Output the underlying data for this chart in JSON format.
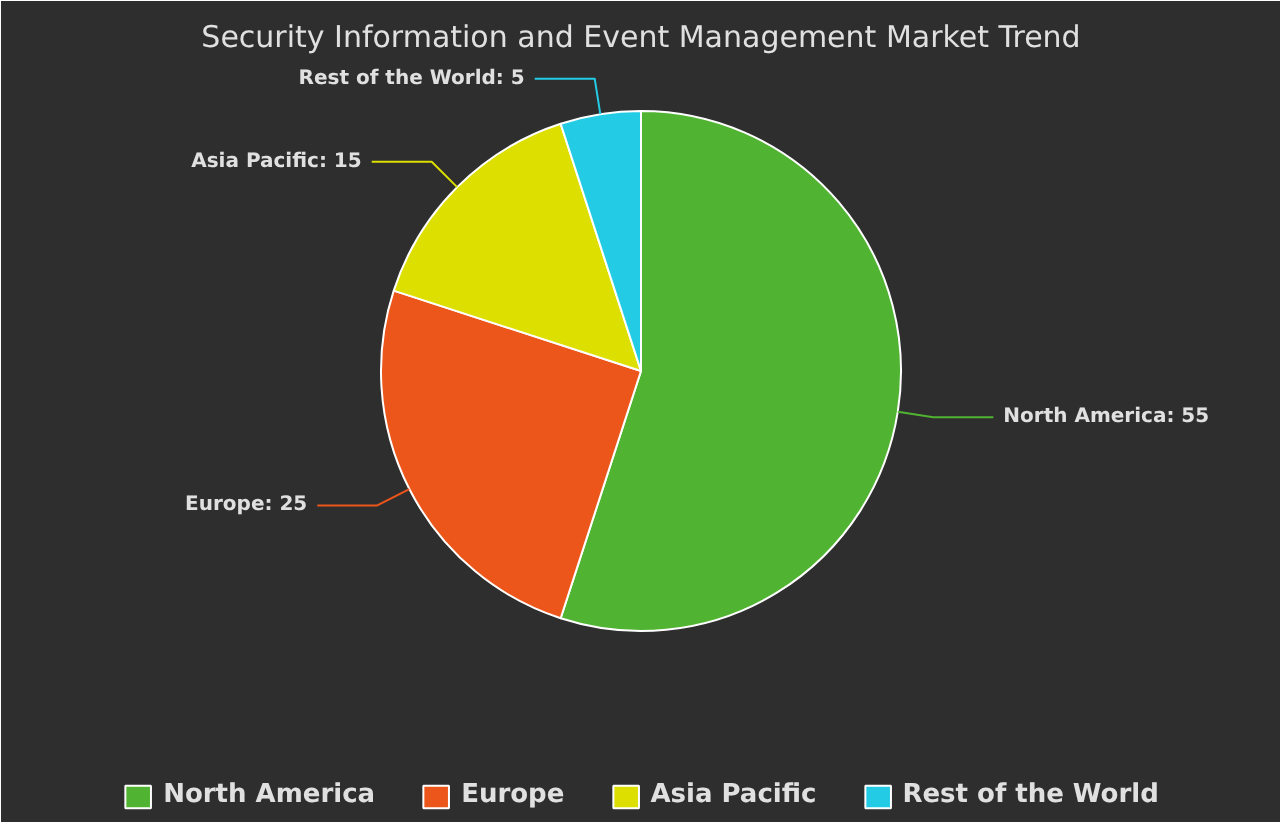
{
  "chart_data": {
    "type": "pie",
    "title": "Security Information and Event Management Market Trend",
    "categories": [
      "North America",
      "Europe",
      "Asia Pacific",
      "Rest of the World"
    ],
    "values": [
      55,
      25,
      15,
      5
    ],
    "value_labels": [
      "North America: 55",
      "Europe: 25",
      "Asia Pacific: 15",
      "Rest of the World: 5"
    ],
    "colors": [
      "#50b432",
      "#ed561b",
      "#dddf00",
      "#24cbe5"
    ],
    "legend": "bottom"
  }
}
